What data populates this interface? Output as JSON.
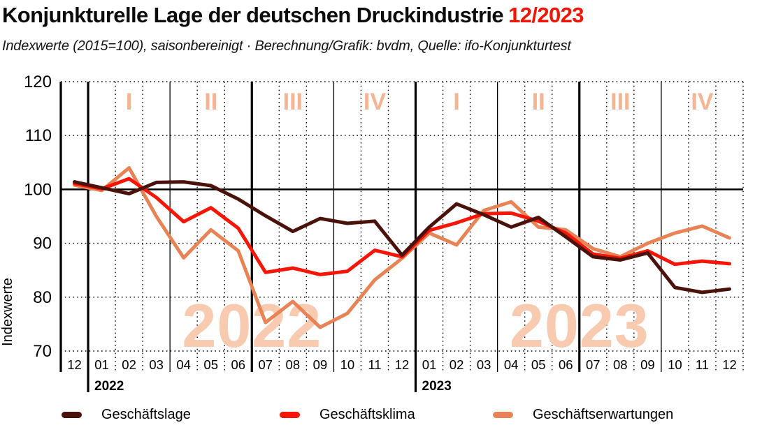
{
  "header": {
    "title": "Konjunkturelle Lage der deutschen Druckindustrie",
    "period": "12/2023",
    "subtitle": "Indexwerte (2015=100), saisonbereinigt · Berechnung/Grafik: bvdm, Quelle: ifo-Konjunkturtest"
  },
  "colors": {
    "title_black": "#0c0c0c",
    "period_red": "#f01505",
    "lage": "#4a120a",
    "klima": "#f81505",
    "erwartungen": "#e88355",
    "quarter_label": "#f5b494",
    "watermark": "#f8cab0",
    "axis": "#000000"
  },
  "chart_data": {
    "type": "line",
    "title": "Konjunkturelle Lage der deutschen Druckindustrie 12/2023",
    "subtitle": "Indexwerte (2015=100), saisonbereinigt",
    "source": "Berechnung/Grafik: bvdm, Quelle: ifo-Konjunkturtest",
    "ylabel": "Indexwerte",
    "ylim": [
      70,
      120
    ],
    "yticks": [
      120,
      110,
      100,
      90,
      80,
      70
    ],
    "baseline_value": 100,
    "grid": "dotted",
    "legend_position": "bottom",
    "x_labels": [
      "12",
      "01",
      "02",
      "03",
      "04",
      "05",
      "06",
      "07",
      "08",
      "09",
      "10",
      "11",
      "12",
      "01",
      "02",
      "03",
      "04",
      "05",
      "06",
      "07",
      "08",
      "09",
      "10",
      "11",
      "12"
    ],
    "year_labels": [
      "2022",
      "2023"
    ],
    "quarter_labels": [
      {
        "text": "I",
        "month_index": 2
      },
      {
        "text": "II",
        "month_index": 5
      },
      {
        "text": "III",
        "month_index": 8
      },
      {
        "text": "IV",
        "month_index": 11
      },
      {
        "text": "I",
        "month_index": 14
      },
      {
        "text": "II",
        "month_index": 17
      },
      {
        "text": "III",
        "month_index": 20
      },
      {
        "text": "IV",
        "month_index": 23
      }
    ],
    "watermarks": [
      "2022",
      "2023"
    ],
    "series": [
      {
        "name": "Geschäftslage",
        "color": "#4a120a",
        "values": [
          101.4,
          100.3,
          99.2,
          101.3,
          101.4,
          100.7,
          98.2,
          95.1,
          92.2,
          94.6,
          93.7,
          94.1,
          87.8,
          93.0,
          97.3,
          95.3,
          93.0,
          94.8,
          91.2,
          87.5,
          86.9,
          88.2,
          81.8,
          80.9,
          81.5
        ]
      },
      {
        "name": "Geschäftsklima",
        "color": "#f81505",
        "values": [
          101.1,
          100.1,
          102.0,
          98.5,
          94.0,
          96.6,
          92.8,
          84.6,
          85.4,
          84.2,
          84.8,
          88.7,
          87.5,
          92.4,
          93.8,
          95.5,
          95.6,
          94.1,
          91.9,
          88.0,
          87.2,
          88.6,
          86.1,
          86.7,
          86.2
        ]
      },
      {
        "name": "Geschäftserwartungen",
        "color": "#e88355",
        "values": [
          100.8,
          99.8,
          104.0,
          95.0,
          87.3,
          92.5,
          88.6,
          75.3,
          79.2,
          74.4,
          77.0,
          83.2,
          87.2,
          91.9,
          89.7,
          96.1,
          97.7,
          93.0,
          92.5,
          89.0,
          87.5,
          90.0,
          91.9,
          93.2,
          91.0
        ]
      }
    ]
  },
  "legend": {
    "items": [
      {
        "label": "Geschäftslage",
        "color": "#4a120a"
      },
      {
        "label": "Geschäftsklima",
        "color": "#f81505"
      },
      {
        "label": "Geschäftserwartungen",
        "color": "#e88355"
      }
    ]
  }
}
